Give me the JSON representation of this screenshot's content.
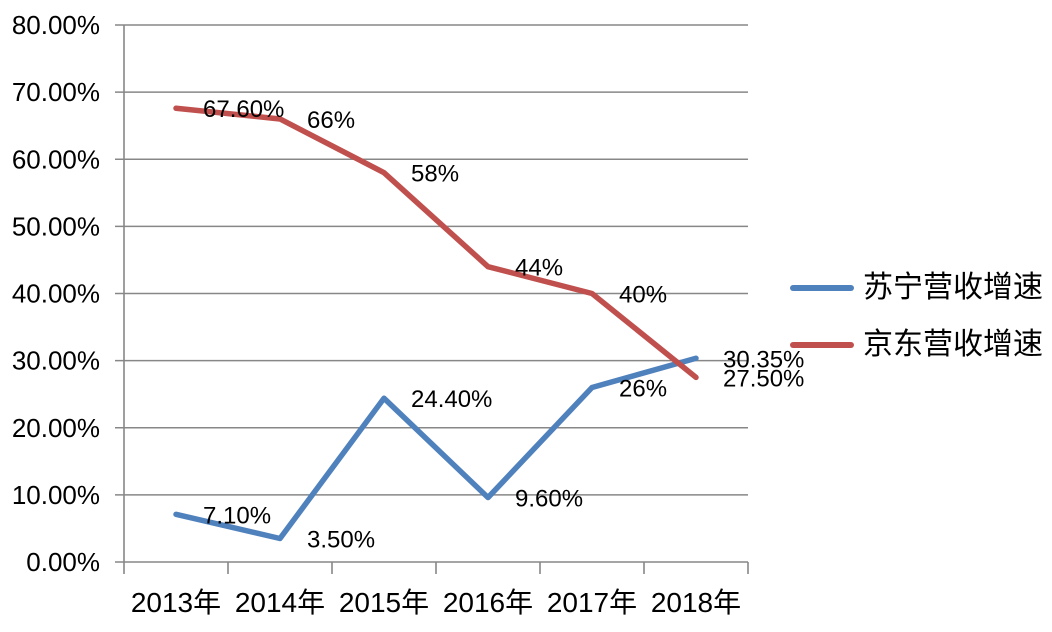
{
  "chart_data": {
    "type": "line",
    "categories": [
      "2013年",
      "2014年",
      "2015年",
      "2016年",
      "2017年",
      "2018年"
    ],
    "series": [
      {
        "name": "苏宁营收增速",
        "color": "#4F81BD",
        "values": [
          7.1,
          3.5,
          24.4,
          9.6,
          26,
          30.35
        ],
        "point_labels": [
          "7.10%",
          "3.50%",
          "24.40%",
          "9.60%",
          "26%",
          "30.35%"
        ]
      },
      {
        "name": "京东营收增速",
        "color": "#C0504D",
        "values": [
          67.6,
          66,
          58,
          44,
          40,
          27.5
        ],
        "point_labels": [
          "67.60%",
          "66%",
          "58%",
          "44%",
          "40%",
          "27.50%"
        ]
      }
    ],
    "title": "",
    "xlabel": "",
    "ylabel": "",
    "ylim": [
      0,
      80
    ],
    "ytick_step": 10,
    "ytick_labels": [
      "0.00%",
      "10.00%",
      "20.00%",
      "30.00%",
      "40.00%",
      "50.00%",
      "60.00%",
      "70.00%",
      "80.00%"
    ],
    "grid": true,
    "legend_position": "right"
  },
  "styles": {
    "grid_color": "#878787",
    "axis_color": "#878787",
    "text_color": "#000000",
    "background": "#FFFFFF"
  }
}
